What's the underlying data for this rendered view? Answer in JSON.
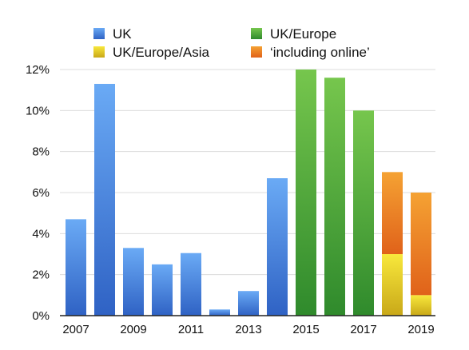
{
  "chart_data": {
    "type": "bar",
    "stacked": true,
    "x": [
      2007,
      2008,
      2009,
      2010,
      2011,
      2012,
      2013,
      2014,
      2015,
      2016,
      2017,
      2018,
      2019
    ],
    "x_tick_labels": [
      "2007",
      "2009",
      "2011",
      "2013",
      "2015",
      "2017",
      "2019"
    ],
    "y_ticks": [
      0,
      2,
      4,
      6,
      8,
      10,
      12
    ],
    "y_tick_format": "%",
    "ylim": [
      0,
      12
    ],
    "grid": true,
    "legend_position": "top",
    "series": [
      {
        "name": "UK",
        "color": "#3f7fe0",
        "values": [
          4.7,
          11.3,
          3.3,
          2.5,
          3.05,
          0.3,
          1.2,
          6.7,
          0,
          0,
          0,
          0,
          0
        ]
      },
      {
        "name": "UK/Europe",
        "color": "#3fa83a",
        "values": [
          0,
          0,
          0,
          0,
          0,
          0,
          0,
          0,
          12.0,
          11.6,
          10.0,
          0,
          0
        ]
      },
      {
        "name": "UK/Europe/Asia",
        "color": "#e8c81c",
        "values": [
          0,
          0,
          0,
          0,
          0,
          0,
          0,
          0,
          0,
          0,
          0,
          3.0,
          1.0
        ]
      },
      {
        "name": "‘including online’",
        "color": "#ee7d1a",
        "values": [
          0,
          0,
          0,
          0,
          0,
          0,
          0,
          0,
          0,
          0,
          0,
          4.0,
          5.0
        ]
      }
    ]
  }
}
